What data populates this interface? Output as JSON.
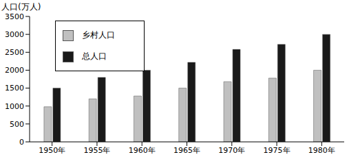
{
  "chart_data": {
    "type": "bar",
    "y_label": "人口(万人)",
    "categories": [
      "1950年",
      "1955年",
      "1960年",
      "1965年",
      "1970年",
      "1975年",
      "1980年"
    ],
    "series": [
      {
        "name": "乡村人口",
        "color": "#c0c0c0",
        "values": [
          980,
          1200,
          1280,
          1500,
          1680,
          1780,
          2000
        ]
      },
      {
        "name": "总人口",
        "color": "#1a1a1a",
        "values": [
          1500,
          1800,
          2000,
          2220,
          2580,
          2720,
          3000
        ]
      }
    ],
    "ylim": [
      0,
      3500
    ],
    "yticks": [
      0,
      500,
      1000,
      1500,
      2000,
      2500,
      3000,
      3500
    ],
    "grid": false,
    "legend": "upper left"
  }
}
